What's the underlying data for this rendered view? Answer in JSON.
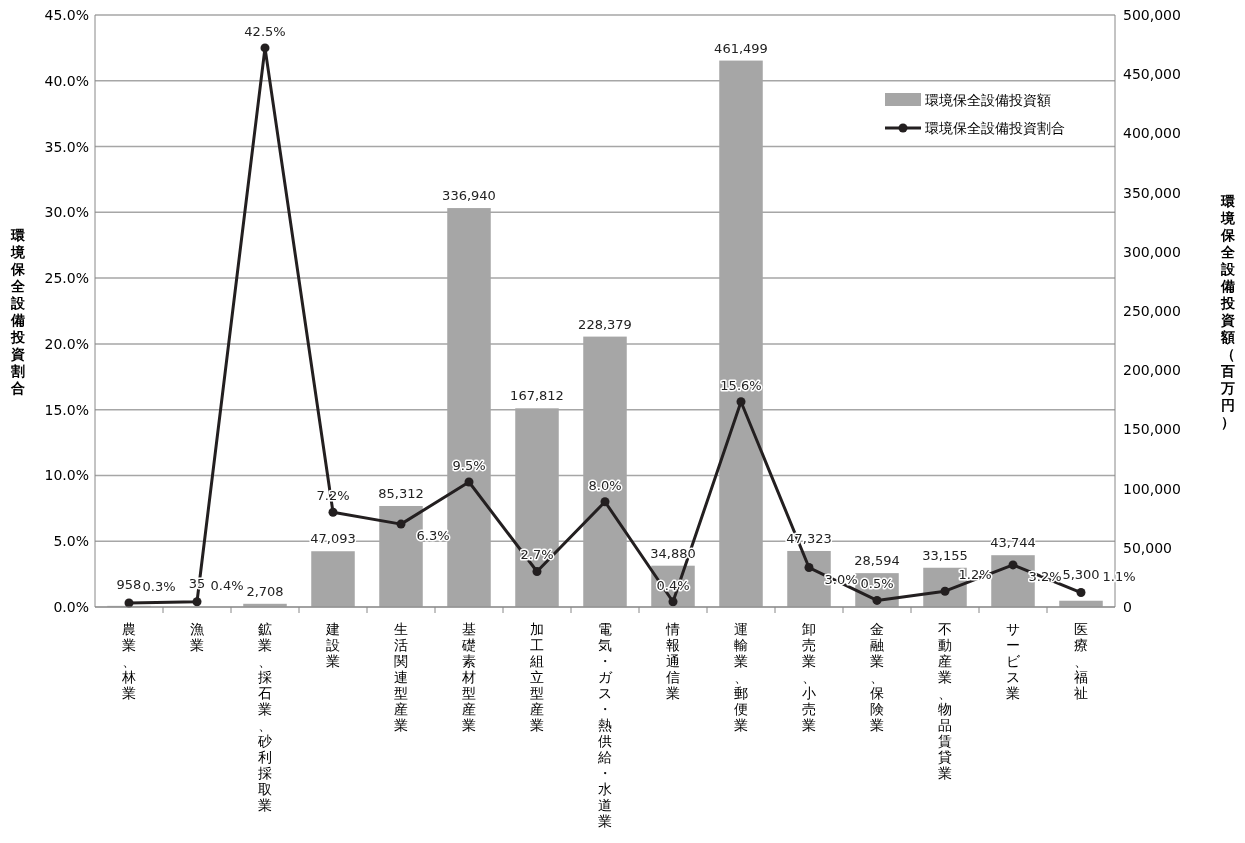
{
  "chart_data": {
    "type": "bar",
    "ylabel": "環境保全設備投資割合",
    "y2label": "環境保全設備投資額（百万円）",
    "categories": [
      "農業、林業",
      "漁業",
      "鉱業、採石業、砂利採取業",
      "建設業",
      "生活関連型産業",
      "基礎素材型産業",
      "加工組立型産業",
      "電気・ガス・熱供給・水道業",
      "情報通信業",
      "運輸業、郵便業",
      "卸売業、小売業",
      "金融業、保険業",
      "不動産業、物品賃貸業",
      "サービス業",
      "医療、福祉"
    ],
    "series": [
      {
        "name": "環境保全設備投資額",
        "axis": "y2",
        "color": "#a6a6a6",
        "values": [
          958,
          35,
          2708,
          47093,
          85312,
          336940,
          167812,
          228379,
          34880,
          461499,
          47323,
          28594,
          33155,
          43744,
          5300
        ],
        "value_labels": [
          "958",
          "35",
          "2,708",
          "47,093",
          "85,312",
          "336,940",
          "167,812",
          "228,379",
          "34,880",
          "461,499",
          "47,323",
          "28,594",
          "33,155",
          "43,744",
          "5,300"
        ]
      },
      {
        "name": "環境保全設備投資割合",
        "type": "line",
        "axis": "y",
        "color": "#231f20",
        "marker": "circle",
        "values": [
          0.3,
          0.4,
          42.5,
          7.2,
          6.3,
          9.5,
          2.7,
          8.0,
          0.4,
          15.6,
          3.0,
          0.5,
          1.2,
          3.2,
          1.1
        ],
        "value_labels": [
          "0.3%",
          "0.4%",
          "42.5%",
          "7.2%",
          "6.3%",
          "9.5%",
          "2.7%",
          "8.0%",
          "0.4%",
          "15.6%",
          "3.0%",
          "0.5%",
          "1.2%",
          "3.2%",
          "1.1%"
        ]
      }
    ],
    "ylim": [
      0,
      45
    ],
    "yticks": [
      {
        "value": 0,
        "label": "0.0%"
      },
      {
        "value": 5,
        "label": "5.0%"
      },
      {
        "value": 10,
        "label": "10.0%"
      },
      {
        "value": 15,
        "label": "15.0%"
      },
      {
        "value": 20,
        "label": "20.0%"
      },
      {
        "value": 25,
        "label": "25.0%"
      },
      {
        "value": 30,
        "label": "30.0%"
      },
      {
        "value": 35,
        "label": "35.0%"
      },
      {
        "value": 40,
        "label": "40.0%"
      },
      {
        "value": 45,
        "label": "45.0%"
      }
    ],
    "y2lim": [
      0,
      500000
    ],
    "y2ticks": [
      0,
      {
        "value": 50000,
        "label": "50,000"
      },
      {
        "value": 100000,
        "label": "100,000"
      },
      {
        "value": 150000,
        "label": "150,000"
      },
      {
        "value": 200000,
        "label": "200,000"
      },
      {
        "value": 250000,
        "label": "250,000"
      },
      {
        "value": 300000,
        "label": "300,000"
      },
      {
        "value": 350000,
        "label": "350,000"
      },
      {
        "value": 400000,
        "label": "400,000"
      },
      {
        "value": 450000,
        "label": "450,000"
      },
      {
        "value": 500000,
        "label": "500,000"
      }
    ],
    "grid": "y",
    "legend": "top right"
  }
}
